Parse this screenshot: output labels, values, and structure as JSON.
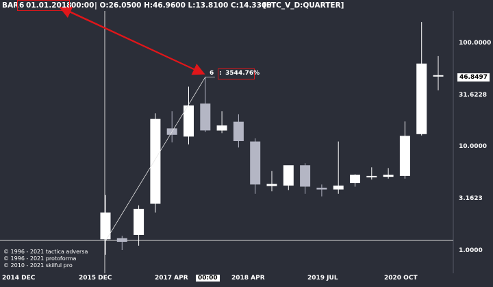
{
  "header": {
    "bar_prefix": "BAR",
    "bar_index": "6",
    "bar_date": "01.01.2018",
    "bar_time": "00:00",
    "ohlc": "| O:26.0500 H:46.9600 L:13.8100 C:14.3300",
    "symbol": "[ETC_V_D:QUARTER]"
  },
  "price_label": "46.8497",
  "crosshair_time": "00:00",
  "measurement": {
    "bar": "6",
    "percent": "3544.76%"
  },
  "copyrights": [
    "© 1996 - 2021 tactica adversa",
    "© 1996 - 2021 protoforma",
    "© 2010 - 2021 skilful pro"
  ],
  "colors": {
    "background": "#2b2e38",
    "up": "#ffffff",
    "down": "#b4b6c4",
    "annotation": "#e0161a"
  },
  "chart_data": {
    "type": "candlestick",
    "scale": "log",
    "ylim": [
      0.85,
      220
    ],
    "y_ticks": [
      "100.0000",
      "31.6228",
      "10.0000",
      "3.1623",
      "1.0000"
    ],
    "x_ticks": [
      "2014 DEC",
      "2015 DEC",
      "2017 APR",
      "2018 APR",
      "2019 JUL",
      "2020 OCT"
    ],
    "candles": [
      {
        "o": 1.27,
        "h": 3.4,
        "l": 0.9,
        "c": 2.3
      },
      {
        "o": 1.3,
        "h": 1.37,
        "l": 1.0,
        "c": 1.2
      },
      {
        "o": 1.4,
        "h": 2.7,
        "l": 1.1,
        "c": 2.5
      },
      {
        "o": 2.8,
        "h": 21,
        "l": 2.3,
        "c": 18.5
      },
      {
        "o": 15,
        "h": 22,
        "l": 11,
        "c": 13
      },
      {
        "o": 12.5,
        "h": 38,
        "l": 10.5,
        "c": 25
      },
      {
        "o": 26.05,
        "h": 46.96,
        "l": 13.81,
        "c": 14.33
      },
      {
        "o": 14.3,
        "h": 22,
        "l": 13.5,
        "c": 16
      },
      {
        "o": 17.4,
        "h": 20.5,
        "l": 9.8,
        "c": 11.3
      },
      {
        "o": 11.2,
        "h": 12,
        "l": 3.5,
        "c": 4.3
      },
      {
        "o": 4.15,
        "h": 5.8,
        "l": 3.7,
        "c": 4.35
      },
      {
        "o": 4.2,
        "h": 6.3,
        "l": 3.8,
        "c": 6.6
      },
      {
        "o": 6.6,
        "h": 6.9,
        "l": 3.5,
        "c": 4.1
      },
      {
        "o": 4.0,
        "h": 4.3,
        "l": 3.3,
        "c": 3.85
      },
      {
        "o": 3.85,
        "h": 11.2,
        "l": 3.5,
        "c": 4.2
      },
      {
        "o": 4.45,
        "h": 5.4,
        "l": 4.1,
        "c": 5.35
      },
      {
        "o": 5.1,
        "h": 6.3,
        "l": 4.8,
        "c": 5.2
      },
      {
        "o": 5.1,
        "h": 6.2,
        "l": 4.9,
        "c": 5.35
      },
      {
        "o": 5.2,
        "h": 17.5,
        "l": 4.9,
        "c": 12.7
      },
      {
        "o": 13.2,
        "h": 160,
        "l": 12.8,
        "c": 63.5
      },
      {
        "o": 49,
        "h": 75,
        "l": 35,
        "c": 49
      }
    ]
  }
}
